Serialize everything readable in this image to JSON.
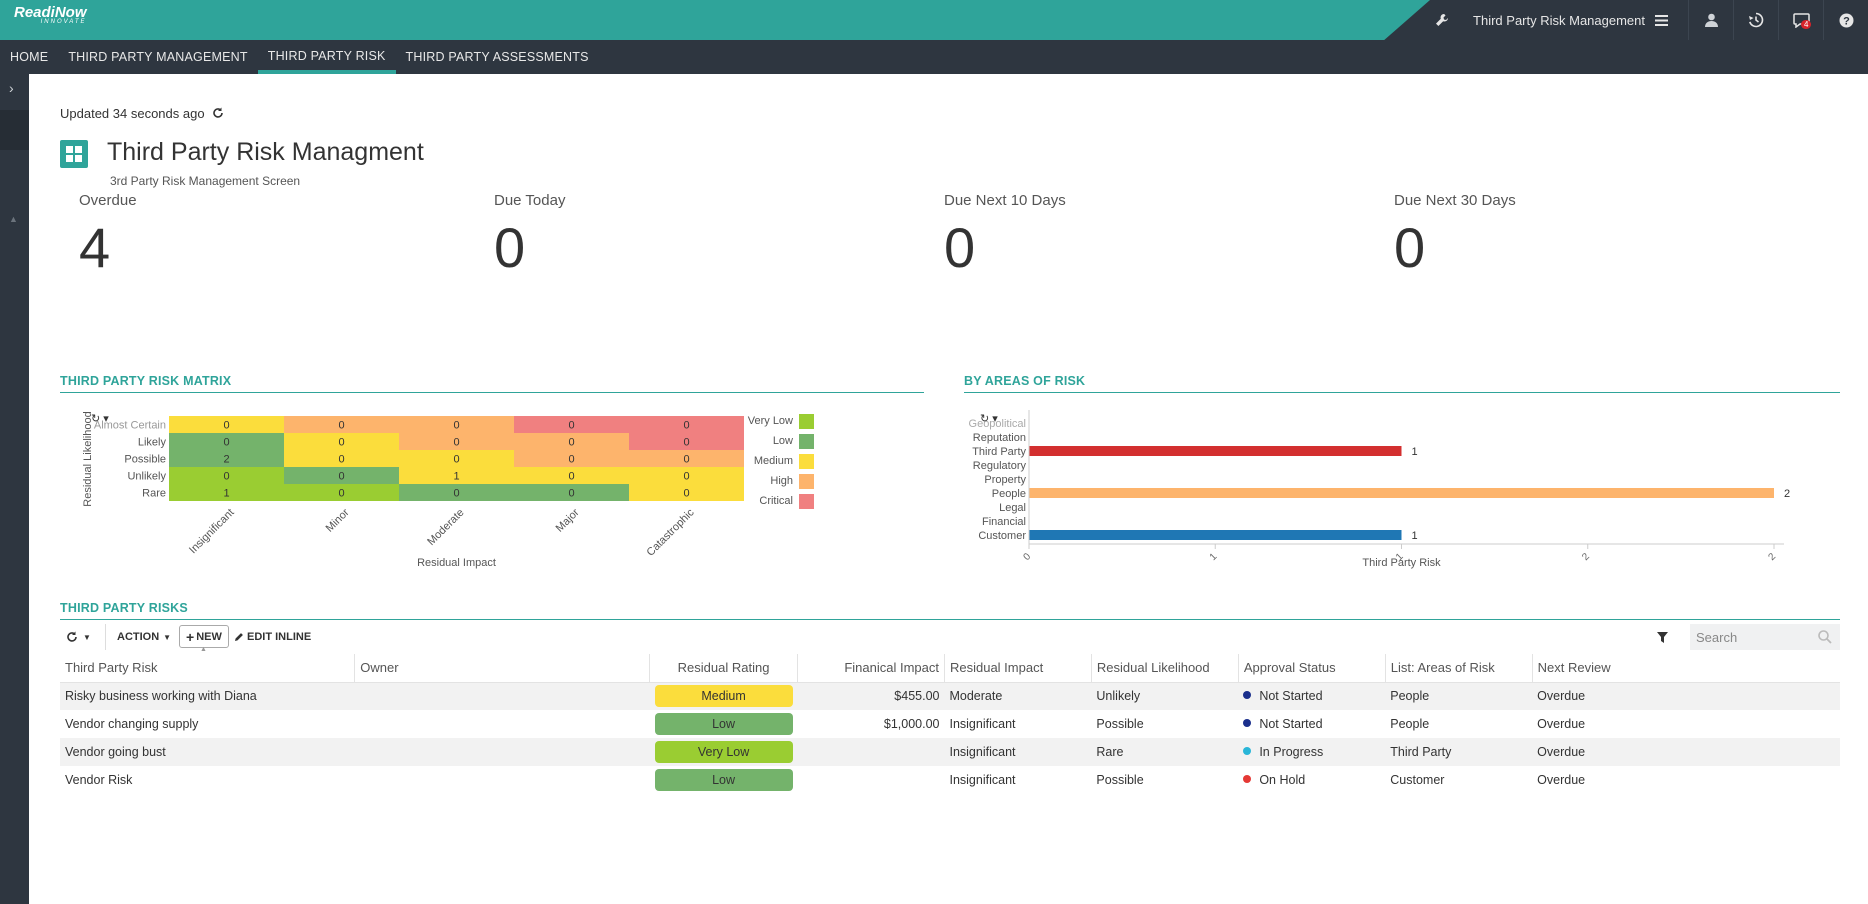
{
  "header": {
    "logo_main": "ReadiNow",
    "logo_sub": "INNOVATE",
    "app_name": "Third Party Risk Management",
    "notification_count": "4"
  },
  "nav": {
    "tabs": [
      {
        "label": "HOME",
        "active": false
      },
      {
        "label": "THIRD PARTY MANAGEMENT",
        "active": false
      },
      {
        "label": "THIRD PARTY RISK",
        "active": true
      },
      {
        "label": "THIRD PARTY ASSESSMENTS",
        "active": false
      }
    ]
  },
  "page": {
    "updated": "Updated 34 seconds ago",
    "title": "Third Party Risk Managment",
    "subtitle": "3rd Party Risk Management Screen"
  },
  "kpis": [
    {
      "label": "Overdue",
      "value": "4"
    },
    {
      "label": "Due Today",
      "value": "0"
    },
    {
      "label": "Due Next 10 Days",
      "value": "0"
    },
    {
      "label": "Due Next 30 Days",
      "value": "0"
    }
  ],
  "matrix": {
    "title": "THIRD PARTY RISK MATRIX",
    "ylabel": "Residual Likelihood",
    "xlabel": "Residual Impact",
    "rows": [
      "Almost Certain",
      "Likely",
      "Possible",
      "Unlikely",
      "Rare"
    ],
    "cols": [
      "Insignificant",
      "Minor",
      "Moderate",
      "Major",
      "Catastrophic"
    ],
    "values": [
      [
        0,
        0,
        0,
        0,
        0
      ],
      [
        0,
        0,
        0,
        0,
        0
      ],
      [
        2,
        0,
        0,
        0,
        0
      ],
      [
        0,
        0,
        1,
        0,
        0
      ],
      [
        1,
        0,
        0,
        0,
        0
      ]
    ],
    "levels": [
      [
        "Medium",
        "High",
        "High",
        "Critical",
        "Critical"
      ],
      [
        "Low",
        "Medium",
        "High",
        "High",
        "Critical"
      ],
      [
        "Low",
        "Medium",
        "Medium",
        "High",
        "High"
      ],
      [
        "Very Low",
        "Low",
        "Medium",
        "Medium",
        "Medium"
      ],
      [
        "Very Low",
        "Very Low",
        "Low",
        "Low",
        "Medium"
      ]
    ],
    "legend": [
      {
        "label": "Very Low",
        "color": "#9acd32"
      },
      {
        "label": "Low",
        "color": "#74b36b"
      },
      {
        "label": "Medium",
        "color": "#fbdd3c"
      },
      {
        "label": "High",
        "color": "#fdb46c"
      },
      {
        "label": "Critical",
        "color": "#f08080"
      }
    ]
  },
  "chart_data": {
    "type": "bar",
    "title": "BY AREAS OF RISK",
    "orientation": "horizontal",
    "categories": [
      "Geopolitical",
      "Reputation",
      "Third Party",
      "Regulatory",
      "Property",
      "People",
      "Legal",
      "Financial",
      "Customer"
    ],
    "values": [
      0,
      0,
      1,
      0,
      0,
      2,
      0,
      0,
      1
    ],
    "colors": [
      "#cccccc",
      "#cccccc",
      "#d32f2f",
      "#cccccc",
      "#cccccc",
      "#fdb46c",
      "#cccccc",
      "#cccccc",
      "#1f77b4"
    ],
    "xlabel": "Third Party Risk",
    "xlim": [
      0,
      2
    ],
    "xticks": [
      "0",
      "1",
      "1",
      "2",
      "2"
    ],
    "grid": false
  },
  "risks": {
    "title": "THIRD PARTY RISKS",
    "toolbar": {
      "action": "ACTION",
      "new": "NEW",
      "edit_inline": "EDIT INLINE",
      "search_placeholder": "Search"
    },
    "columns": [
      "Third Party Risk",
      "Owner",
      "Residual Rating",
      "Finanical Impact",
      "Residual Impact",
      "Residual Likelihood",
      "Approval Status",
      "List: Areas of Risk",
      "Next Review"
    ],
    "rows": [
      {
        "risk": "Risky business working with Diana",
        "owner": "",
        "rating": "Medium",
        "rating_color": "#fbdd3c",
        "impact_amt": "$455.00",
        "impact": "Moderate",
        "likelihood": "Unlikely",
        "status": "Not Started",
        "status_color": "#1a2f8c",
        "area": "People",
        "review": "Overdue"
      },
      {
        "risk": "Vendor changing supply",
        "owner": "",
        "rating": "Low",
        "rating_color": "#74b36b",
        "impact_amt": "$1,000.00",
        "impact": "Insignificant",
        "likelihood": "Possible",
        "status": "Not Started",
        "status_color": "#1a2f8c",
        "area": "People",
        "review": "Overdue"
      },
      {
        "risk": "Vendor going bust",
        "owner": "",
        "rating": "Very Low",
        "rating_color": "#9acd32",
        "impact_amt": "",
        "impact": "Insignificant",
        "likelihood": "Rare",
        "status": "In Progress",
        "status_color": "#29b6d8",
        "area": "Third Party",
        "review": "Overdue"
      },
      {
        "risk": "Vendor Risk",
        "owner": "",
        "rating": "Low",
        "rating_color": "#74b36b",
        "impact_amt": "",
        "impact": "Insignificant",
        "likelihood": "Possible",
        "status": "On Hold",
        "status_color": "#e53935",
        "area": "Customer",
        "review": "Overdue"
      }
    ]
  }
}
